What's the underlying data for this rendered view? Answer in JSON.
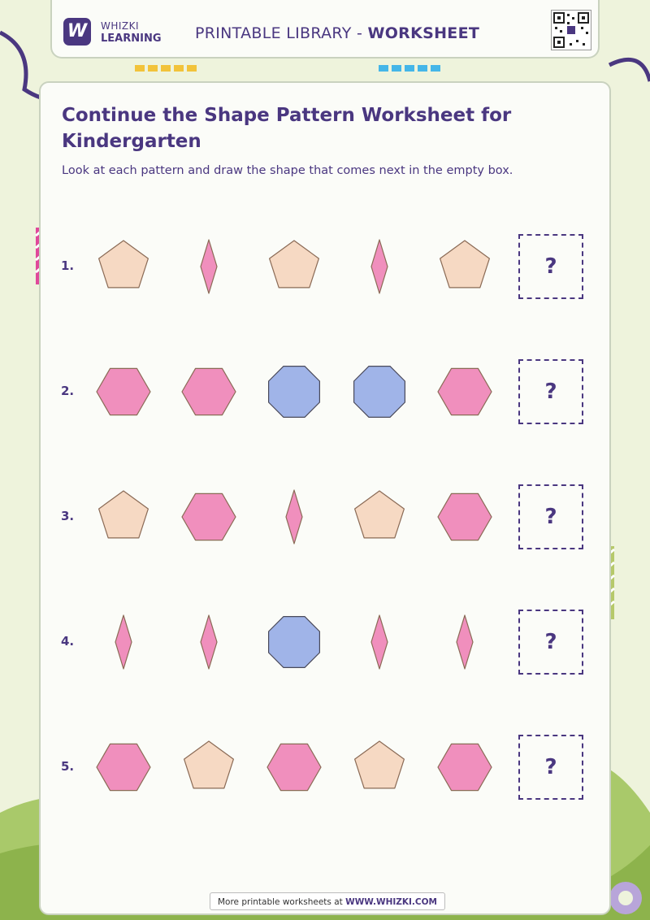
{
  "header": {
    "brand_line1": "WHIZKI",
    "brand_line2": "LEARNING",
    "title_prefix": "PRINTABLE LIBRARY - ",
    "title_bold": "WORKSHEET",
    "logo_letter": "W"
  },
  "worksheet": {
    "title": "Continue the Shape Pattern Worksheet for Kindergarten",
    "instructions": "Look at each pattern and draw the shape that comes next in the empty box.",
    "answer_mark": "?",
    "rows": [
      {
        "number": "1.",
        "shapes": [
          "pentagon",
          "rhombus",
          "pentagon",
          "rhombus",
          "pentagon"
        ]
      },
      {
        "number": "2.",
        "shapes": [
          "hexagon",
          "hexagon",
          "octagon",
          "octagon",
          "hexagon"
        ]
      },
      {
        "number": "3.",
        "shapes": [
          "pentagon",
          "hexagon",
          "rhombus",
          "pentagon",
          "hexagon"
        ]
      },
      {
        "number": "4.",
        "shapes": [
          "rhombus",
          "rhombus",
          "octagon",
          "rhombus",
          "rhombus"
        ]
      },
      {
        "number": "5.",
        "shapes": [
          "hexagon",
          "pentagon",
          "hexagon",
          "pentagon",
          "hexagon"
        ]
      }
    ]
  },
  "footer": {
    "prefix": "More printable worksheets at ",
    "link": "WWW.WHIZKI.COM"
  },
  "colors": {
    "brand": "#4a3780",
    "pentagon": "#f6d9c3",
    "rhombus": "#f08fbd",
    "hexagon": "#f08fbd",
    "octagon": "#a0b4e8",
    "stroke": "#8a6a55"
  }
}
